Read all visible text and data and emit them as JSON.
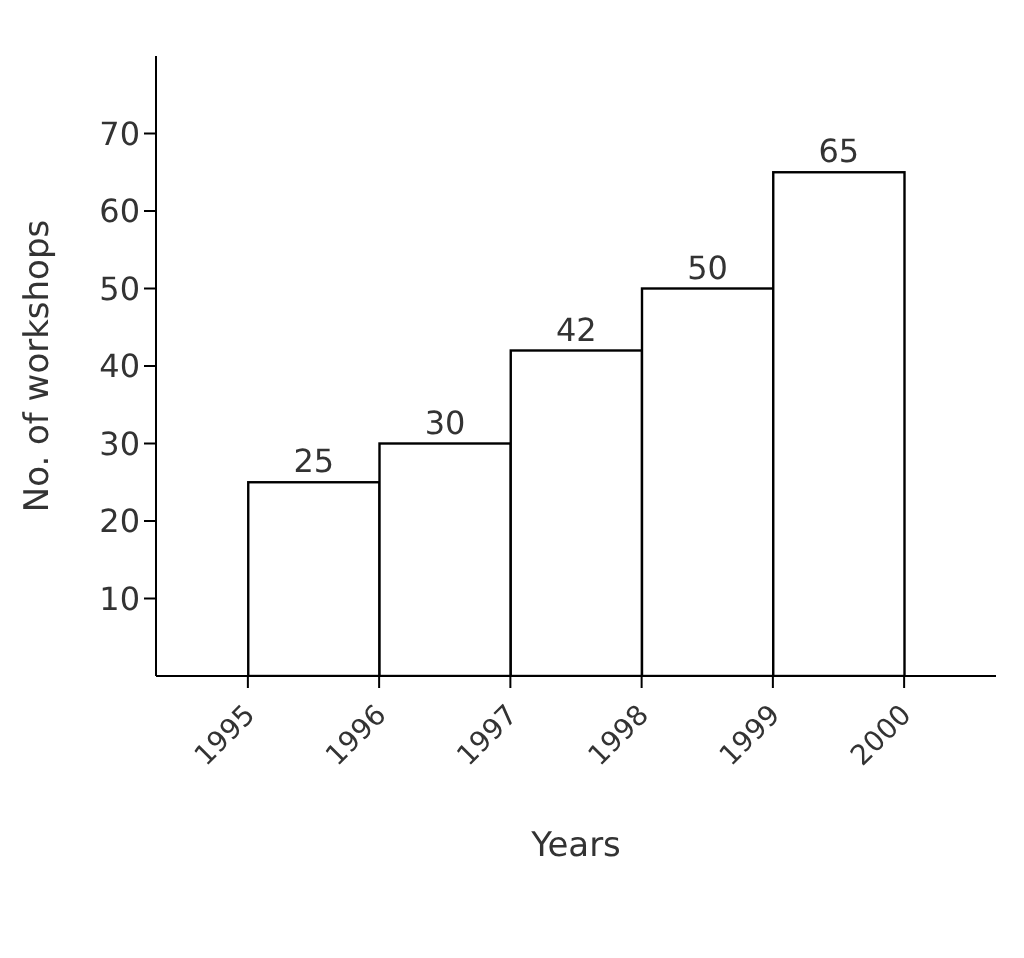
{
  "chart_data": {
    "type": "histogram",
    "xlabel": "Years",
    "ylabel": "No. of workshops",
    "bins": [
      1995,
      1996,
      1997,
      1998,
      1999,
      2000
    ],
    "values": [
      25,
      30,
      42,
      50,
      65
    ],
    "color": "#ffffff",
    "xlim": [
      1994.3,
      2000.7
    ],
    "xticks": [
      1995,
      1996,
      1997,
      1998,
      1999,
      2000
    ],
    "ylim": [
      0,
      80
    ],
    "yticks": [
      10,
      20,
      30,
      40,
      50,
      60,
      70
    ],
    "data_labels": true
  }
}
